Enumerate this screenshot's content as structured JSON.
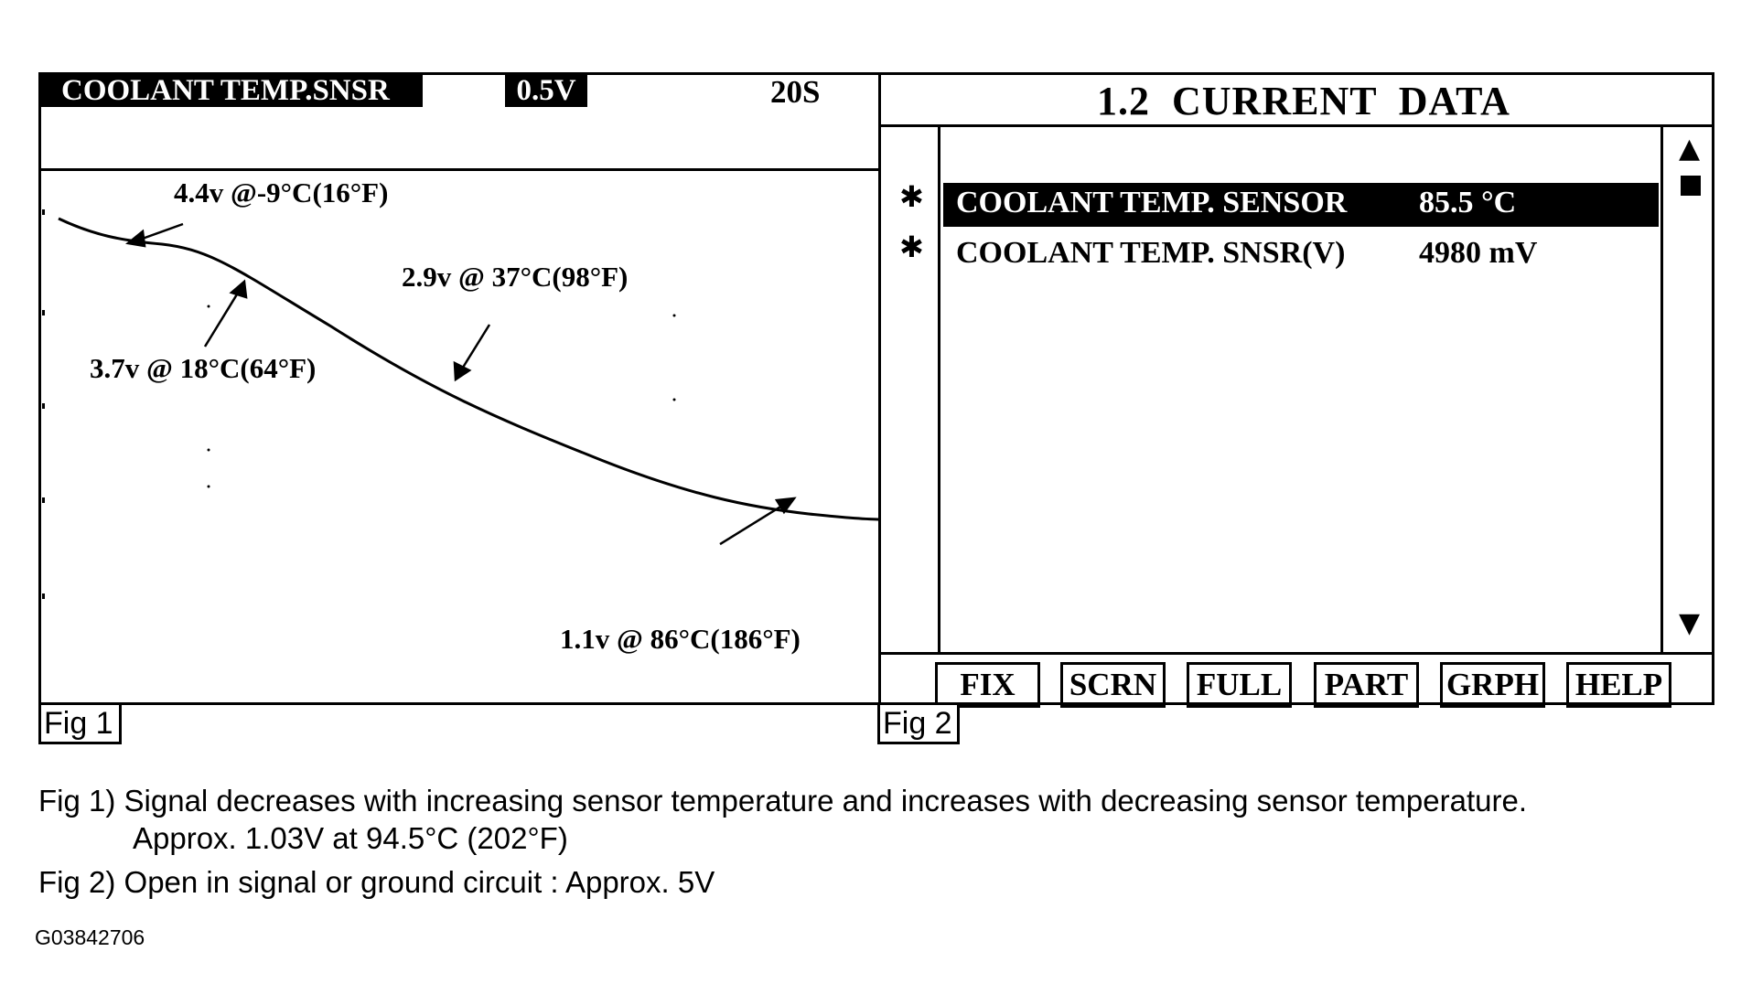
{
  "fig1": {
    "sensor_label": "COOLANT TEMP.SNSR",
    "scale_badge": "0.5V",
    "time_span": "20S",
    "annotations": [
      "4.4v @-9°C(16°F)",
      "3.7v @ 18°C(64°F)",
      "2.9v @ 37°C(98°F)",
      "1.1v @ 86°C(186°F)"
    ],
    "tag": "Fig 1"
  },
  "fig2": {
    "title": "1.2  CURRENT  DATA",
    "rows": [
      {
        "marker": "✱",
        "name": "COOLANT TEMP. SENSOR",
        "value": "85.5 °C",
        "selected": true
      },
      {
        "marker": "✱",
        "name": "COOLANT TEMP. SNSR(V)",
        "value": "4980 mV",
        "selected": false
      }
    ],
    "scroll_up_icon": "▲",
    "scroll_down_icon": "▼",
    "function_keys": [
      "FIX",
      "SCRN",
      "FULL",
      "PART",
      "GRPH",
      "HELP"
    ],
    "tag": "Fig 2"
  },
  "captions": {
    "fig1_line1": "Fig 1) Signal decreases with increasing sensor temperature and increases with decreasing sensor temperature.",
    "fig1_line2": "Approx. 1.03V at 94.5°C (202°F)",
    "fig2_line": "Fig 2) Open in signal or ground circuit : Approx. 5V"
  },
  "figure_code": "G03842706"
}
